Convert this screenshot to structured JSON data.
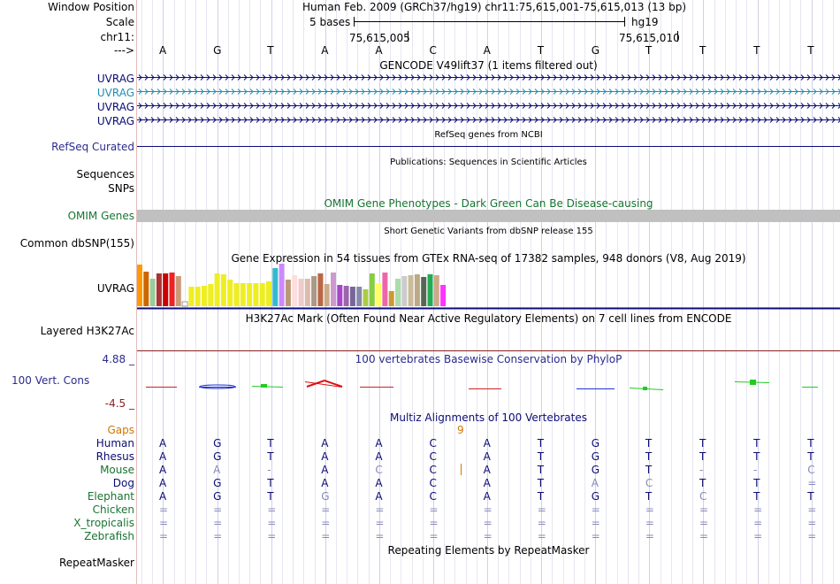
{
  "window": {
    "position_label": "Window Position",
    "position_text": "Human Feb. 2009 (GRCh37/hg19)   chr11:75,615,001-75,615,013 (13 bp)",
    "scale_label": "Scale",
    "scale_text": "5 bases",
    "scale_db": "hg19",
    "chrom_label": "chr11:",
    "coord_left": "75,615,005",
    "coord_right": "75,615,010",
    "strand_label": "--->"
  },
  "bases": [
    "A",
    "G",
    "T",
    "A",
    "A",
    "C",
    "A",
    "T",
    "G",
    "T",
    "T",
    "T",
    "T"
  ],
  "gencode": {
    "title": "GENCODE V49lift37 (1 items filtered out)",
    "tracks": [
      {
        "name": "UVRAG",
        "color": "#0b0b75"
      },
      {
        "name": "UVRAG",
        "color": "#1e8fb3"
      },
      {
        "name": "UVRAG",
        "color": "#0b0b75"
      },
      {
        "name": "UVRAG",
        "color": "#0b0b75"
      }
    ]
  },
  "refseq": {
    "title": "RefSeq genes from NCBI",
    "label": "RefSeq Curated"
  },
  "publications": {
    "title": "Publications: Sequences in Scientific Articles",
    "label1": "Sequences",
    "label2": "SNPs"
  },
  "omim": {
    "title": "OMIM Gene Phenotypes - Dark Green Can Be Disease-causing",
    "label": "OMIM Genes"
  },
  "dbsnp": {
    "title": "Short Genetic Variants from dbSNP release 155",
    "label": "Common dbSNP(155)"
  },
  "gtex": {
    "title": "Gene Expression in 54 tissues from GTEx RNA-seq of 17382 samples, 948 donors (V8, Aug 2019)",
    "label": "UVRAG",
    "bar_colors": [
      "#ff9900",
      "#cc6600",
      "#99cc99",
      "#aa3333",
      "#cc0000",
      "#ee2222",
      "#cc9977",
      "#ffffff",
      "#eeee22",
      "#eeee22",
      "#eeee22",
      "#eeee22",
      "#eeee22",
      "#eeee22",
      "#eeee22",
      "#eeee22",
      "#eeee22",
      "#eeee22",
      "#eeee22",
      "#eeee22",
      "#eeee22",
      "#33bbcc",
      "#cc88ff",
      "#bb9977",
      "#ffdddd",
      "#eecccc",
      "#ddbbaa",
      "#aa9988",
      "#bb6644",
      "#ccaa88",
      "#cc99cc",
      "#aa44cc",
      "#9966aa",
      "#776699",
      "#8888aa",
      "#aacc44",
      "#88cc44",
      "#ffff66",
      "#ee66aa",
      "#cc9933",
      "#aaddaa",
      "#cccccc",
      "#ccbb99",
      "#bbaa88",
      "#556655",
      "#22aa55",
      "#ccaa88",
      "#ff33ff"
    ],
    "bar_heights": [
      0.98,
      0.82,
      0.65,
      0.78,
      0.78,
      0.8,
      0.7,
      0.1,
      0.45,
      0.45,
      0.48,
      0.52,
      0.78,
      0.75,
      0.62,
      0.55,
      0.55,
      0.55,
      0.55,
      0.55,
      0.58,
      0.9,
      1.0,
      0.62,
      0.72,
      0.65,
      0.64,
      0.7,
      0.78,
      0.52,
      0.8,
      0.5,
      0.48,
      0.45,
      0.45,
      0.4,
      0.78,
      0.55,
      0.8,
      0.35,
      0.65,
      0.7,
      0.72,
      0.74,
      0.68,
      0.75,
      0.72,
      0.5
    ]
  },
  "h3k27ac": {
    "title": "H3K27Ac Mark (Often Found Near Active Regulatory Elements) on 7 cell lines from ENCODE",
    "label": "Layered H3K27Ac"
  },
  "phylop": {
    "title": "100 vertebrates Basewise Conservation by PhyloP",
    "label": "100 Vert. Cons",
    "max_label": "4.88 _",
    "min_label": "-4.5 _"
  },
  "multiz": {
    "title": "Multiz Alignments of 100 Vertebrates",
    "gaps_label": "Gaps",
    "gap_count": "9",
    "species": [
      {
        "name": "Human",
        "color": "#0b0b75",
        "seq": [
          "A",
          "G",
          "T",
          "A",
          "A",
          "C",
          "A",
          "T",
          "G",
          "T",
          "T",
          "T",
          "T"
        ]
      },
      {
        "name": "Rhesus",
        "color": "#0b0b75",
        "seq": [
          "A",
          "G",
          "T",
          "A",
          "A",
          "C",
          "A",
          "T",
          "G",
          "T",
          "T",
          "T",
          "T"
        ]
      },
      {
        "name": "Mouse",
        "color": "#177530",
        "seq": [
          "A",
          "A",
          "-",
          "A",
          "C",
          "C",
          "A",
          "T",
          "G",
          "T",
          "-",
          "-",
          "C"
        ]
      },
      {
        "name": "Dog",
        "color": "#0b0b75",
        "seq": [
          "A",
          "G",
          "T",
          "A",
          "A",
          "C",
          "A",
          "T",
          "A",
          "C",
          "T",
          "T",
          "="
        ]
      },
      {
        "name": "Elephant",
        "color": "#177530",
        "seq": [
          "A",
          "G",
          "T",
          "G",
          "A",
          "C",
          "A",
          "T",
          "G",
          "T",
          "C",
          "T",
          "T"
        ]
      },
      {
        "name": "Chicken",
        "color": "#177530",
        "seq": [
          "=",
          "=",
          "=",
          "=",
          "=",
          "=",
          "=",
          "=",
          "=",
          "=",
          "=",
          "=",
          "="
        ]
      },
      {
        "name": "X_tropicalis",
        "color": "#177530",
        "seq": [
          "=",
          "=",
          "=",
          "=",
          "=",
          "=",
          "=",
          "=",
          "=",
          "=",
          "=",
          "=",
          "="
        ]
      },
      {
        "name": "Zebrafish",
        "color": "#177530",
        "seq": [
          "=",
          "=",
          "=",
          "=",
          "=",
          "=",
          "=",
          "=",
          "=",
          "=",
          "=",
          "=",
          "="
        ]
      }
    ]
  },
  "repeatmasker": {
    "title": "Repeating Elements by RepeatMasker",
    "label": "RepeatMasker"
  },
  "colors": {
    "navy": "#0b0b75",
    "green": "#177530",
    "label_blue": "#2b2b8f",
    "omim_gray": "#c0c0c0",
    "maroon": "#8b2020",
    "orange": "#d07800"
  }
}
